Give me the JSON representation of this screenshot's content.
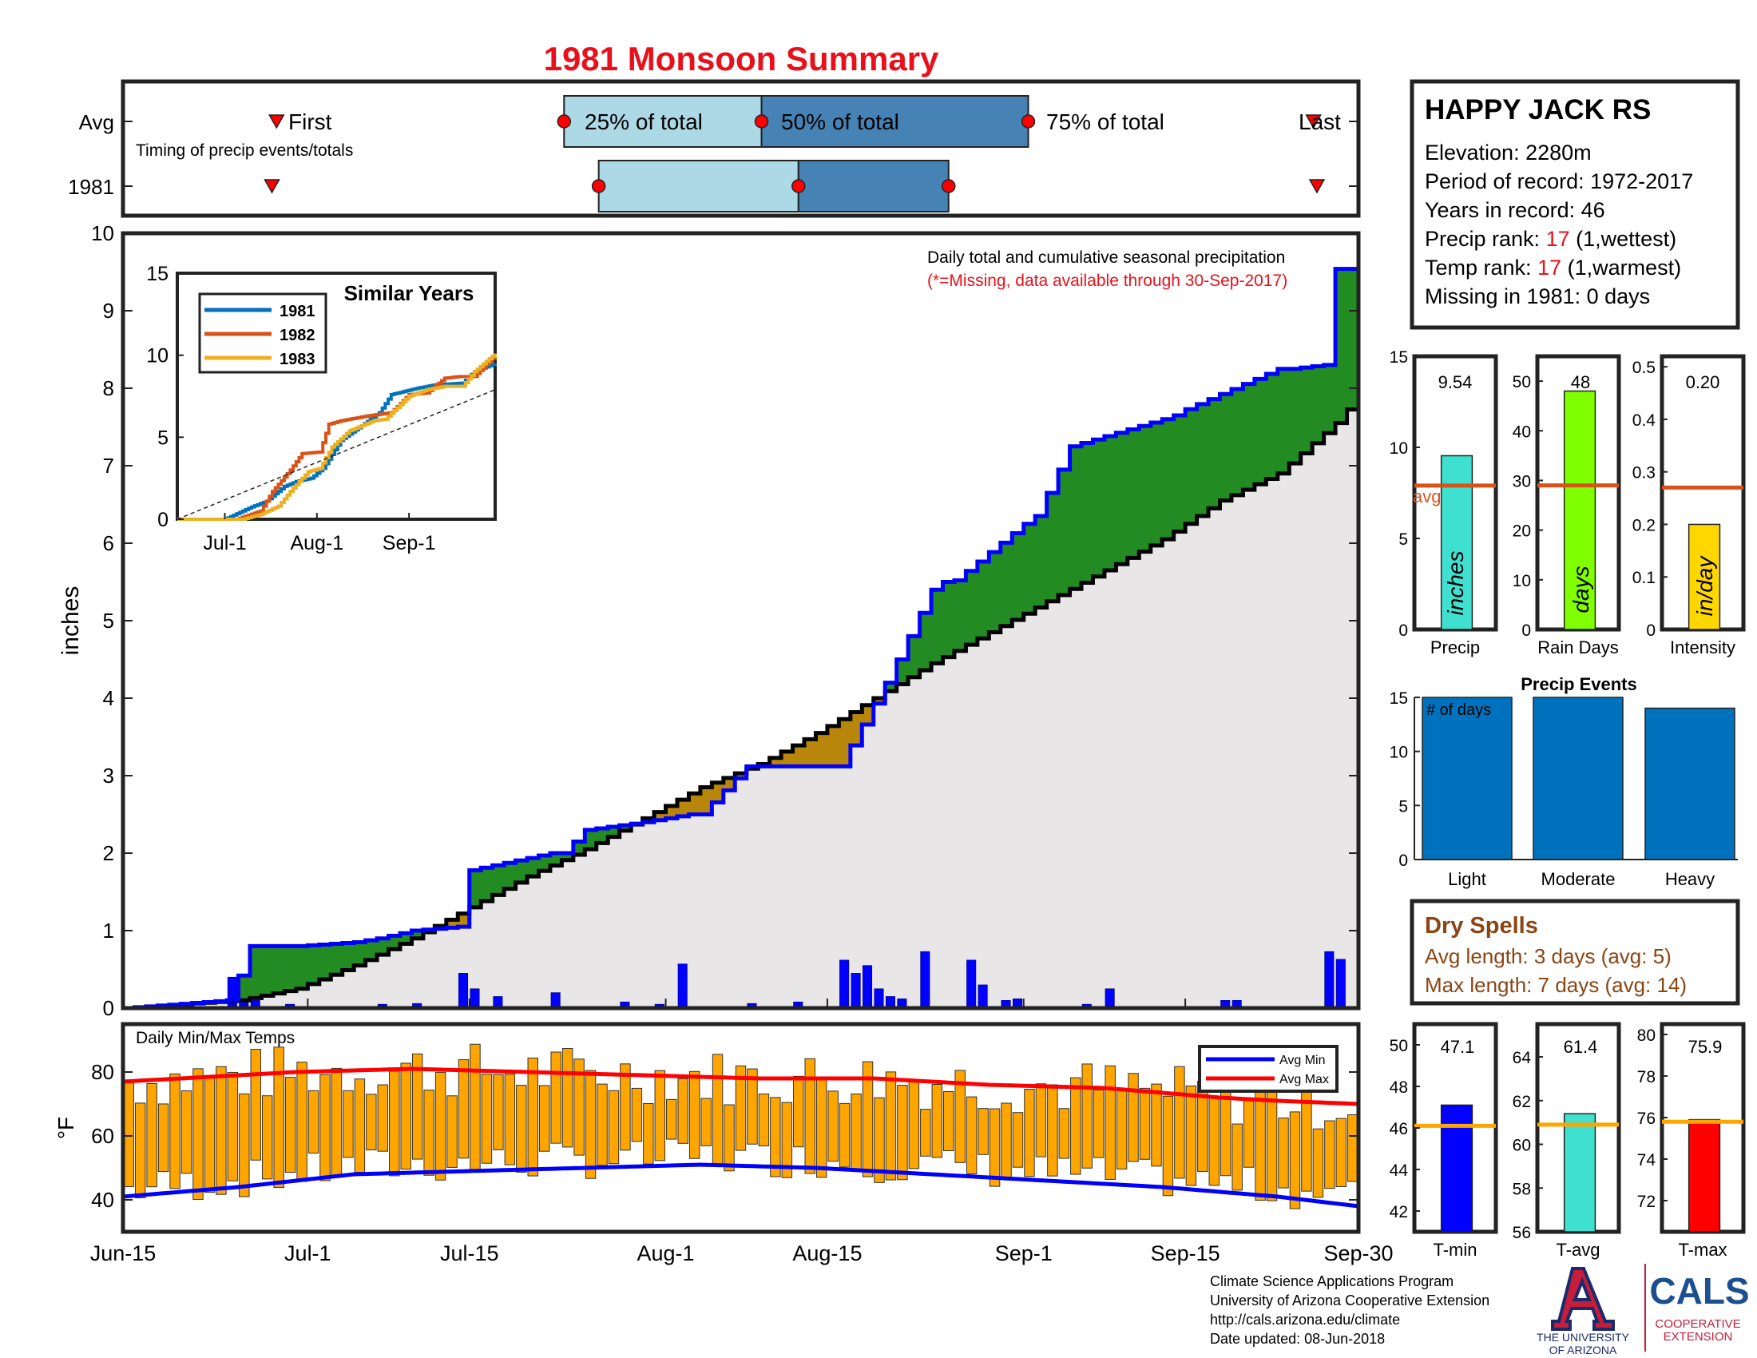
{
  "title": "1981 Monsoon Summary",
  "station": {
    "name": "HAPPY JACK RS",
    "elevation": "Elevation: 2280m",
    "period": "Period of record: 1972-2017",
    "years": "Years in record: 46",
    "precip_rank_label": "Precip rank: ",
    "precip_rank_value": "17",
    "precip_rank_note": " (1,wettest)",
    "temp_rank_label": "Temp rank: ",
    "temp_rank_value": "17",
    "temp_rank_note": " (1,warmest)",
    "missing": "Missing in 1981: 0 days"
  },
  "timing": {
    "row_avg": "Avg",
    "row_year": "1981",
    "first": "First",
    "last": "Last",
    "p25": "25% of total",
    "p50": "50% of total",
    "p75": "75% of total",
    "caption": "Timing of precip events/totals"
  },
  "main": {
    "ylabel": "inches",
    "note1": "Daily total and cumulative seasonal precipitation",
    "note2": "(*=Missing, data available through 30-Sep-2017)",
    "x_ticks": [
      "Jun-15",
      "Jul-1",
      "Jul-15",
      "Aug-1",
      "Aug-15",
      "Sep-1",
      "Sep-15",
      "Sep-30"
    ]
  },
  "inset": {
    "title": "Similar Years",
    "series_names": [
      "1981",
      "1982",
      "1983"
    ],
    "x_ticks": [
      "Jul-1",
      "Aug-1",
      "Sep-1"
    ]
  },
  "temps": {
    "title": "Daily Min/Max Temps",
    "ylabel": "°F",
    "legend_min": "Avg Min",
    "legend_max": "Avg Max"
  },
  "stats": {
    "labels": [
      "Precip",
      "Rain Days",
      "Intensity"
    ],
    "units": [
      "inches",
      "days",
      "in/day"
    ],
    "values": [
      "9.54",
      "48",
      "0.20"
    ],
    "avg_label": "avg"
  },
  "events": {
    "title": "Precip Events",
    "ylabel": "# of days",
    "categories": [
      "Light",
      "Moderate",
      "Heavy"
    ]
  },
  "dry": {
    "title": "Dry Spells",
    "avg_length": "Avg length: 3 days (avg: 5)",
    "max_length": "Max length: 7 days (avg: 14)"
  },
  "tstats": {
    "labels": [
      "T-min",
      "T-avg",
      "T-max"
    ],
    "values": [
      "47.1",
      "61.4",
      "75.9"
    ]
  },
  "footer": {
    "line1": "Climate Science Applications Program",
    "line2": "University of Arizona Cooperative Extension",
    "line3": "http://cals.arizona.edu/climate",
    "line4": " Date updated: 08-Jun-2018",
    "ua1": "THE UNIVERSITY",
    "ua2": "OF ARIZONA",
    "cals": "CALS",
    "cals1": "COOPERATIVE",
    "cals2": "EXTENSION"
  },
  "colors": {
    "title": "#e8111b",
    "green": "#228b22",
    "brown": "#b8860b",
    "bar_blue": "#0000ff",
    "orange": "#ffa500",
    "avg_line": "#d95319",
    "grey_fill": "#e8e6e6"
  },
  "chart_data": [
    {
      "type": "area",
      "name": "main-cumulative",
      "x_unit": "day index from Jun-15 (0) to Sep-30 (107)",
      "ylim": [
        0,
        10
      ],
      "y_ticks": [
        0,
        1,
        2,
        3,
        4,
        5,
        6,
        7,
        8,
        9,
        10
      ],
      "series": [
        {
          "name": "1981",
          "x": [
            0,
            9,
            10,
            11,
            15,
            20,
            22,
            25,
            29,
            30,
            37,
            38,
            40,
            45,
            49,
            50,
            54,
            55,
            58,
            62,
            66,
            70,
            71,
            72,
            78,
            79,
            82,
            90,
            91,
            92,
            100,
            101,
            104,
            105,
            107
          ],
          "y": [
            0,
            0.1,
            0.42,
            0.8,
            0.8,
            0.85,
            0.9,
            1.0,
            1.05,
            1.78,
            2.0,
            2.0,
            2.3,
            2.4,
            2.5,
            2.5,
            3.12,
            3.12,
            3.12,
            3.12,
            4.2,
            5.4,
            5.5,
            5.52,
            6.25,
            6.35,
            7.25,
            7.6,
            7.65,
            7.73,
            8.25,
            8.25,
            8.3,
            9.54,
            9.54
          ]
        },
        {
          "name": "Average",
          "x": [
            0,
            10,
            15,
            20,
            25,
            30,
            35,
            40,
            45,
            50,
            55,
            60,
            65,
            70,
            75,
            80,
            85,
            90,
            95,
            100,
            105,
            107
          ],
          "y": [
            0,
            0.1,
            0.25,
            0.55,
            0.9,
            1.3,
            1.7,
            2.05,
            2.45,
            2.85,
            3.15,
            3.55,
            4.0,
            4.45,
            4.85,
            5.25,
            5.65,
            6.05,
            6.55,
            6.9,
            7.55,
            7.9
          ]
        }
      ],
      "daily": [
        {
          "x": 9,
          "y": 0.4
        },
        {
          "x": 10,
          "y": 0.12
        },
        {
          "x": 11,
          "y": 0.1
        },
        {
          "x": 14,
          "y": 0.05
        },
        {
          "x": 22,
          "y": 0.05
        },
        {
          "x": 25,
          "y": 0.06
        },
        {
          "x": 29,
          "y": 0.45
        },
        {
          "x": 30,
          "y": 0.25
        },
        {
          "x": 32,
          "y": 0.15
        },
        {
          "x": 37,
          "y": 0.2
        },
        {
          "x": 43,
          "y": 0.08
        },
        {
          "x": 46,
          "y": 0.05
        },
        {
          "x": 48,
          "y": 0.57
        },
        {
          "x": 54,
          "y": 0.06
        },
        {
          "x": 58,
          "y": 0.08
        },
        {
          "x": 62,
          "y": 0.62
        },
        {
          "x": 63,
          "y": 0.45
        },
        {
          "x": 64,
          "y": 0.55
        },
        {
          "x": 65,
          "y": 0.25
        },
        {
          "x": 66,
          "y": 0.15
        },
        {
          "x": 67,
          "y": 0.12
        },
        {
          "x": 69,
          "y": 0.73
        },
        {
          "x": 73,
          "y": 0.62
        },
        {
          "x": 74,
          "y": 0.3
        },
        {
          "x": 76,
          "y": 0.1
        },
        {
          "x": 77,
          "y": 0.12
        },
        {
          "x": 83,
          "y": 0.05
        },
        {
          "x": 85,
          "y": 0.25
        },
        {
          "x": 95,
          "y": 0.1
        },
        {
          "x": 96,
          "y": 0.1
        },
        {
          "x": 104,
          "y": 0.73
        },
        {
          "x": 105,
          "y": 0.63
        }
      ]
    },
    {
      "type": "line",
      "name": "similar-years",
      "ylim": [
        0,
        15
      ],
      "y_ticks": [
        0,
        5,
        10,
        15
      ],
      "series": [
        {
          "name": "1981",
          "x": [
            0,
            16,
            25,
            30,
            36,
            40,
            45,
            49,
            55,
            62,
            68,
            72,
            81,
            87,
            96,
            100,
            107
          ],
          "y": [
            0,
            0,
            0.75,
            1.1,
            2.0,
            2.3,
            2.5,
            3.1,
            4.8,
            5.7,
            6.5,
            7.6,
            8.0,
            8.2,
            8.3,
            9.0,
            9.5
          ]
        },
        {
          "name": "1982",
          "x": [
            0,
            20,
            28,
            32,
            38,
            42,
            48,
            51,
            55,
            64,
            72,
            78,
            84,
            90,
            95,
            100,
            107
          ],
          "y": [
            0,
            0,
            0.5,
            1.7,
            3.0,
            4.0,
            4.1,
            5.8,
            6.0,
            6.3,
            6.5,
            7.6,
            7.7,
            8.6,
            8.7,
            8.7,
            10.0
          ]
        },
        {
          "name": "1983",
          "x": [
            0,
            22,
            28,
            34,
            38,
            44,
            48,
            52,
            58,
            66,
            70,
            74,
            78,
            84,
            90,
            96,
            100,
            107
          ],
          "y": [
            0,
            0,
            0.3,
            0.8,
            1.7,
            2.9,
            3.1,
            4.4,
            5.4,
            6.0,
            6.1,
            6.8,
            7.5,
            7.9,
            8.1,
            8.1,
            9.0,
            10.1
          ]
        },
        {
          "name": "Average",
          "x": [
            0,
            107
          ],
          "y": [
            0,
            7.9
          ]
        }
      ]
    },
    {
      "type": "bar",
      "name": "daily-temps",
      "ylim": [
        30,
        95
      ],
      "y_ticks": [
        40,
        60,
        80
      ],
      "avg_min": {
        "x": [
          0,
          10,
          20,
          30,
          40,
          50,
          60,
          70,
          80,
          90,
          100,
          107
        ],
        "y": [
          41,
          44,
          48,
          49,
          50,
          51,
          50,
          48,
          46,
          44,
          41,
          38
        ]
      },
      "avg_max": {
        "x": [
          0,
          15,
          25,
          35,
          45,
          55,
          65,
          75,
          85,
          95,
          100,
          107
        ],
        "y": [
          77,
          80,
          81,
          80,
          79,
          78,
          78,
          76,
          75,
          72,
          71,
          70
        ]
      }
    },
    {
      "type": "bar",
      "name": "precip-stats",
      "categories": [
        "Precip",
        "Rain Days",
        "Intensity"
      ],
      "values": [
        9.54,
        48,
        0.2
      ],
      "averages": [
        7.9,
        29,
        0.27
      ],
      "ylims": [
        [
          0,
          15
        ],
        [
          0,
          55
        ],
        [
          0,
          0.52
        ]
      ],
      "y_ticks": [
        [
          0,
          5,
          10,
          15
        ],
        [
          0,
          10,
          20,
          30,
          40,
          50
        ],
        [
          0,
          0.1,
          0.2,
          0.3,
          0.4,
          0.5
        ]
      ]
    },
    {
      "type": "bar",
      "name": "precip-events",
      "categories": [
        "Light",
        "Moderate",
        "Heavy"
      ],
      "values": [
        15,
        15,
        14
      ],
      "ylim": [
        0,
        15
      ],
      "y_ticks": [
        0,
        5,
        10,
        15
      ]
    },
    {
      "type": "bar",
      "name": "temp-stats",
      "categories": [
        "T-min",
        "T-avg",
        "T-max"
      ],
      "values": [
        47.1,
        61.4,
        75.9
      ],
      "averages": [
        46.1,
        60.9,
        75.8
      ],
      "ylims": [
        [
          41,
          51
        ],
        [
          56,
          65.5
        ],
        [
          70.5,
          80.5
        ]
      ],
      "y_ticks": [
        [
          42,
          44,
          46,
          48,
          50
        ],
        [
          56,
          58,
          60,
          62,
          64
        ],
        [
          72,
          74,
          76,
          78,
          80
        ]
      ]
    }
  ]
}
